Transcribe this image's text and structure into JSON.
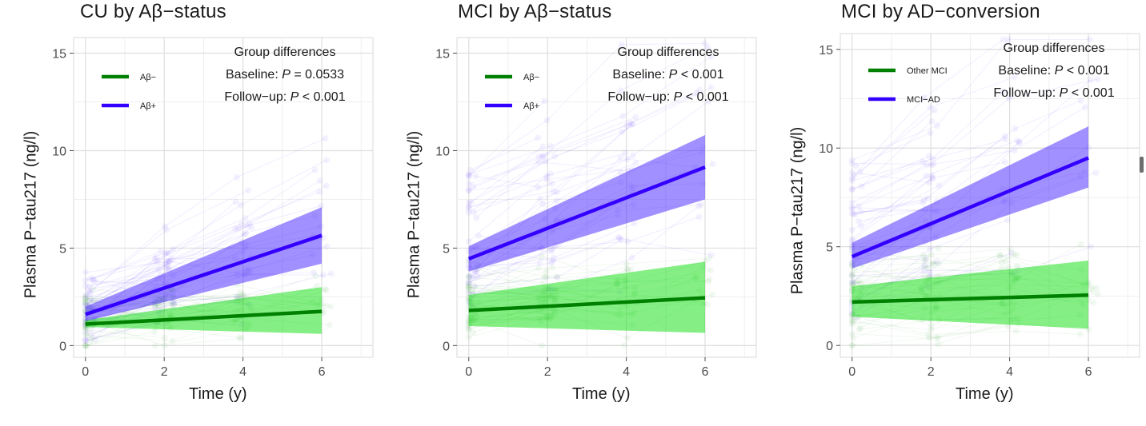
{
  "chart_data": [
    {
      "type": "line",
      "title": "CU by Aβ−status",
      "xlabel": "Time (y)",
      "ylabel": "Plasma P−tau217 (ng/l)",
      "xlim": [
        -0.3,
        7.3
      ],
      "ylim": [
        -0.6,
        15.8
      ],
      "x_ticks": [
        0,
        2,
        4,
        6
      ],
      "y_ticks": [
        0,
        5,
        10,
        15
      ],
      "grid": true,
      "legend_position": "top-left",
      "series": [
        {
          "name": "Aβ−",
          "color": "#008000",
          "band_color": "#00dd00",
          "x": [
            0,
            6
          ],
          "values": [
            1.1,
            1.75
          ],
          "ci_lower": [
            0.95,
            0.6
          ],
          "ci_upper": [
            1.3,
            3.0
          ]
        },
        {
          "name": "Aβ+",
          "color": "#3300ff",
          "band_color": "#4422ff",
          "x": [
            0,
            6
          ],
          "values": [
            1.6,
            5.65
          ],
          "ci_lower": [
            1.25,
            4.2
          ],
          "ci_upper": [
            2.0,
            7.1
          ]
        }
      ],
      "annotation": {
        "heading": "Group differences",
        "lines": [
          {
            "label": "Baseline: ",
            "p": "P",
            "rest": " = 0.0533"
          },
          {
            "label": "Follow−up: ",
            "p": "P",
            "rest": " < 0.001"
          }
        ]
      }
    },
    {
      "type": "line",
      "title": "MCI by Aβ−status",
      "xlabel": "Time (y)",
      "ylabel": "Plasma P−tau217 (ng/l)",
      "xlim": [
        -0.3,
        7.3
      ],
      "ylim": [
        -0.6,
        15.8
      ],
      "x_ticks": [
        0,
        2,
        4,
        6
      ],
      "y_ticks": [
        0,
        5,
        10,
        15
      ],
      "grid": true,
      "legend_position": "top-left",
      "series": [
        {
          "name": "Aβ−",
          "color": "#008000",
          "band_color": "#00dd00",
          "x": [
            0,
            6
          ],
          "values": [
            1.8,
            2.45
          ],
          "ci_lower": [
            1.0,
            0.65
          ],
          "ci_upper": [
            2.6,
            4.3
          ]
        },
        {
          "name": "Aβ+",
          "color": "#3300ff",
          "band_color": "#4422ff",
          "x": [
            0,
            6
          ],
          "values": [
            4.45,
            9.15
          ],
          "ci_lower": [
            3.8,
            7.5
          ],
          "ci_upper": [
            5.1,
            10.8
          ]
        }
      ],
      "annotation": {
        "heading": "Group differences",
        "lines": [
          {
            "label": "Baseline: ",
            "p": "P",
            "rest": " < 0.001"
          },
          {
            "label": "Follow−up: ",
            "p": "P",
            "rest": " < 0.001"
          }
        ]
      }
    },
    {
      "type": "line",
      "title": "MCI by AD−conversion",
      "xlabel": "Time (y)",
      "ylabel": "Plasma P−tau217 (ng/l)",
      "xlim": [
        -0.3,
        7.3
      ],
      "ylim": [
        -0.6,
        15.8
      ],
      "x_ticks": [
        0,
        2,
        4,
        6
      ],
      "y_ticks": [
        0,
        5,
        10,
        15
      ],
      "grid": true,
      "legend_position": "top-left",
      "series": [
        {
          "name": "Other MCI",
          "color": "#008000",
          "band_color": "#00dd00",
          "x": [
            0,
            6
          ],
          "values": [
            2.2,
            2.55
          ],
          "ci_lower": [
            1.45,
            0.85
          ],
          "ci_upper": [
            3.0,
            4.3
          ]
        },
        {
          "name": "MCI−AD",
          "color": "#3300ff",
          "band_color": "#4422ff",
          "x": [
            0,
            6
          ],
          "values": [
            4.5,
            9.5
          ],
          "ci_lower": [
            3.9,
            8.0
          ],
          "ci_upper": [
            5.2,
            11.1
          ]
        }
      ],
      "annotation": {
        "heading": "Group differences",
        "lines": [
          {
            "label": "Baseline: ",
            "p": "P",
            "rest": " < 0.001"
          },
          {
            "label": "Follow−up: ",
            "p": "P",
            "rest": " < 0.001"
          }
        ]
      }
    }
  ]
}
